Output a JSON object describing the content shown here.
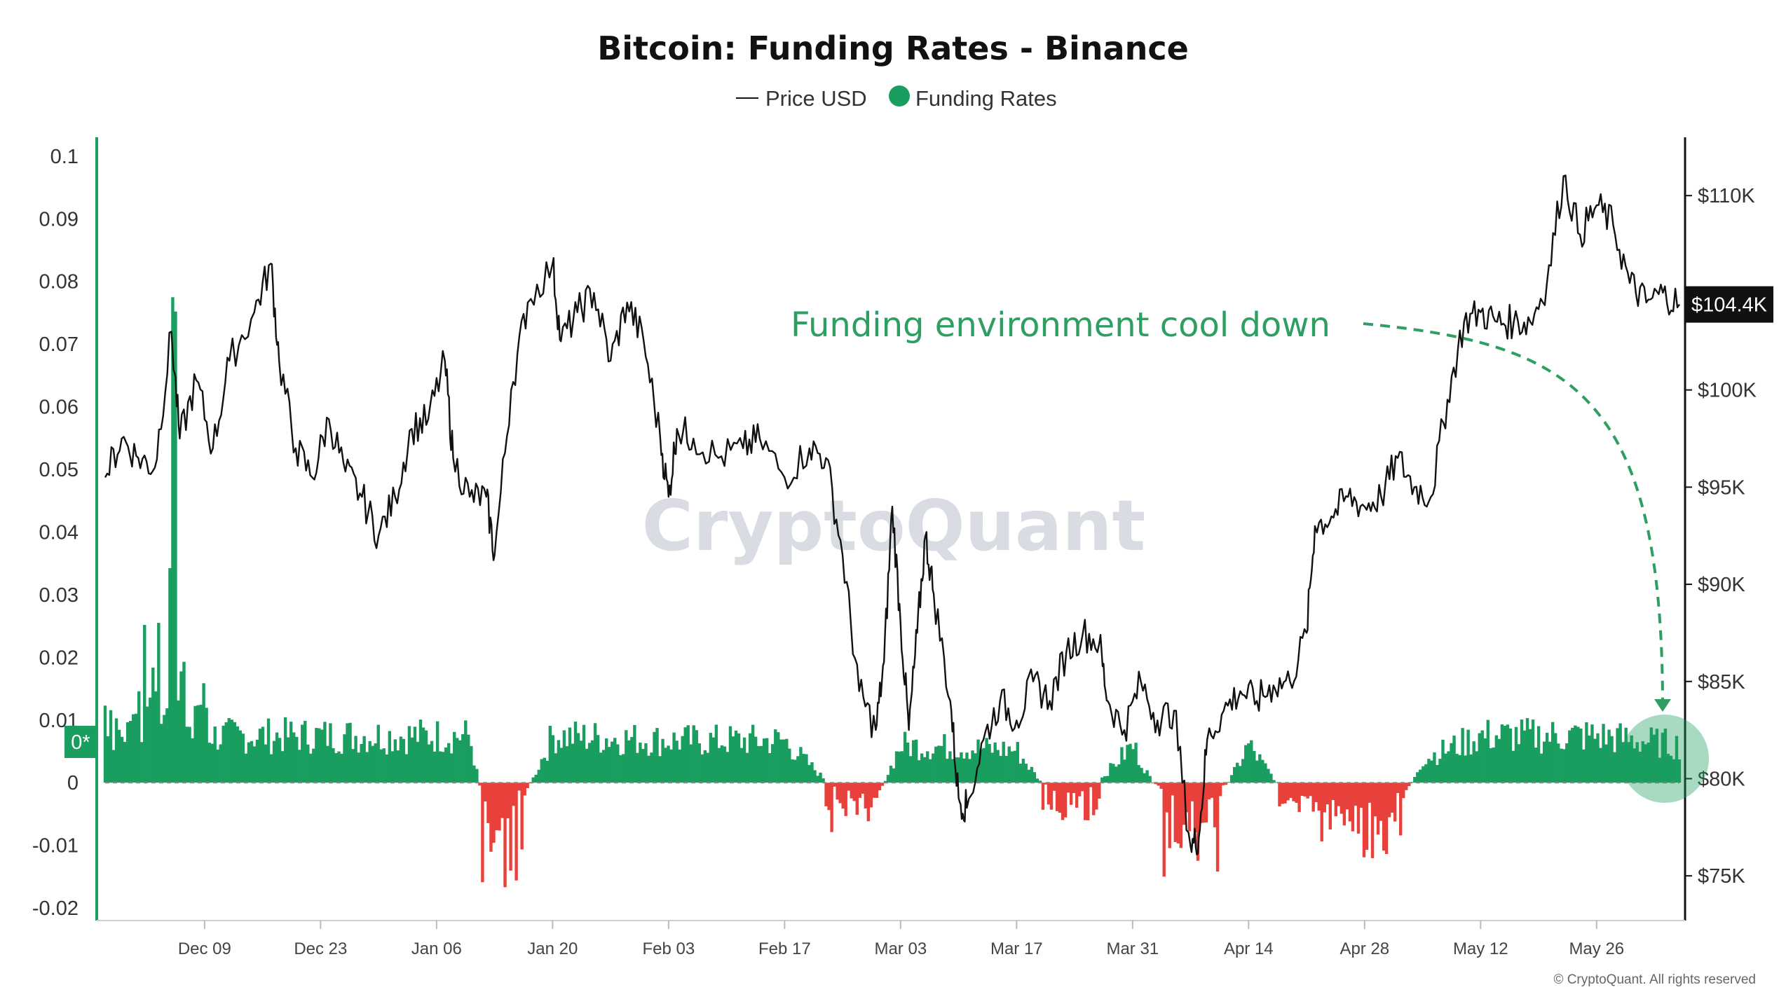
{
  "chart_data": {
    "type": "bar",
    "title": "Bitcoin: Funding Rates - Binance",
    "legend": [
      "Price USD",
      "Funding Rates"
    ],
    "legend_placement": "top-center",
    "grid": false,
    "colors": {
      "price_line": "#111111",
      "funding_positive": "#1a9e5f",
      "funding_negative": "#e8403a",
      "annotation": "#2e9e62",
      "axis_left": "#1a9e5f"
    },
    "left_axis": {
      "ylim": [
        -0.022,
        0.103
      ],
      "ticks": [
        "0.1",
        "0.09",
        "0.08",
        "0.07",
        "0.06",
        "0.05",
        "0.04",
        "0.03",
        "0.02",
        "0.01",
        "0",
        "-0.01",
        "-0.02"
      ],
      "tick_values": [
        0.1,
        0.09,
        0.08,
        0.07,
        0.06,
        0.05,
        0.04,
        0.03,
        0.02,
        0.01,
        0,
        -0.01,
        -0.02
      ]
    },
    "right_axis": {
      "ylim": [
        72700,
        113000
      ],
      "ticks": [
        "$110K",
        "$100K",
        "$95K",
        "$90K",
        "$85K",
        "$80K",
        "$75K"
      ],
      "tick_values": [
        110000,
        100000,
        95000,
        90000,
        85000,
        80000,
        75000
      ],
      "current_price_label": "$104.4K",
      "current_price": 104400
    },
    "x_axis": {
      "start": "2024-11-27",
      "end": "2025-06-05",
      "ticks": [
        {
          "label": "Dec 09",
          "date": "2024-12-09"
        },
        {
          "label": "Dec 23",
          "date": "2024-12-23"
        },
        {
          "label": "Jan 06",
          "date": "2025-01-06"
        },
        {
          "label": "Jan 20",
          "date": "2025-01-20"
        },
        {
          "label": "Feb 03",
          "date": "2025-02-03"
        },
        {
          "label": "Feb 17",
          "date": "2025-02-17"
        },
        {
          "label": "Mar 03",
          "date": "2025-03-03"
        },
        {
          "label": "Mar 17",
          "date": "2025-03-17"
        },
        {
          "label": "Mar 31",
          "date": "2025-03-31"
        },
        {
          "label": "Apr 14",
          "date": "2025-04-14"
        },
        {
          "label": "Apr 28",
          "date": "2025-04-28"
        },
        {
          "label": "May 12",
          "date": "2025-05-12"
        },
        {
          "label": "May 26",
          "date": "2025-05-26"
        }
      ]
    },
    "zero_marker_label": "0*",
    "series": [
      {
        "name": "Price USD",
        "type": "line",
        "axis": "right",
        "points": [
          [
            "2024-11-27",
            95500
          ],
          [
            "2024-11-29",
            97500
          ],
          [
            "2024-12-01",
            96500
          ],
          [
            "2024-12-03",
            96000
          ],
          [
            "2024-12-05",
            103000
          ],
          [
            "2024-12-06",
            97500
          ],
          [
            "2024-12-08",
            100500
          ],
          [
            "2024-12-10",
            97000
          ],
          [
            "2024-12-12",
            101500
          ],
          [
            "2024-12-15",
            104000
          ],
          [
            "2024-12-17",
            106500
          ],
          [
            "2024-12-18",
            101500
          ],
          [
            "2024-12-20",
            97000
          ],
          [
            "2024-12-22",
            95500
          ],
          [
            "2024-12-24",
            98500
          ],
          [
            "2024-12-26",
            95800
          ],
          [
            "2024-12-28",
            94500
          ],
          [
            "2024-12-30",
            92500
          ],
          [
            "2025-01-01",
            94500
          ],
          [
            "2025-01-03",
            98000
          ],
          [
            "2025-01-05",
            98500
          ],
          [
            "2025-01-07",
            101500
          ],
          [
            "2025-01-08",
            96500
          ],
          [
            "2025-01-10",
            94500
          ],
          [
            "2025-01-12",
            94500
          ],
          [
            "2025-01-13",
            91500
          ],
          [
            "2025-01-15",
            100000
          ],
          [
            "2025-01-17",
            104500
          ],
          [
            "2025-01-20",
            106500
          ],
          [
            "2025-01-21",
            102500
          ],
          [
            "2025-01-23",
            104000
          ],
          [
            "2025-01-25",
            105000
          ],
          [
            "2025-01-27",
            101500
          ],
          [
            "2025-01-29",
            104500
          ],
          [
            "2025-01-31",
            102500
          ],
          [
            "2025-02-02",
            97500
          ],
          [
            "2025-02-03",
            94500
          ],
          [
            "2025-02-04",
            98000
          ],
          [
            "2025-02-06",
            97500
          ],
          [
            "2025-02-09",
            96500
          ],
          [
            "2025-02-12",
            97000
          ],
          [
            "2025-02-14",
            97500
          ],
          [
            "2025-02-17",
            95500
          ],
          [
            "2025-02-20",
            97000
          ],
          [
            "2025-02-22",
            96500
          ],
          [
            "2025-02-24",
            91500
          ],
          [
            "2025-02-26",
            84500
          ],
          [
            "2025-02-28",
            82500
          ],
          [
            "2025-03-01",
            86000
          ],
          [
            "2025-03-02",
            94000
          ],
          [
            "2025-03-03",
            88000
          ],
          [
            "2025-03-04",
            82500
          ],
          [
            "2025-03-05",
            87500
          ],
          [
            "2025-03-06",
            92500
          ],
          [
            "2025-03-07",
            89500
          ],
          [
            "2025-03-09",
            84000
          ],
          [
            "2025-03-10",
            79000
          ],
          [
            "2025-03-11",
            78500
          ],
          [
            "2025-03-13",
            82000
          ],
          [
            "2025-03-15",
            84000
          ],
          [
            "2025-03-17",
            83000
          ],
          [
            "2025-03-19",
            85000
          ],
          [
            "2025-03-21",
            84000
          ],
          [
            "2025-03-23",
            86500
          ],
          [
            "2025-03-25",
            87500
          ],
          [
            "2025-03-27",
            87000
          ],
          [
            "2025-03-28",
            84000
          ],
          [
            "2025-03-30",
            82500
          ],
          [
            "2025-04-01",
            85000
          ],
          [
            "2025-04-03",
            83000
          ],
          [
            "2025-04-05",
            83500
          ],
          [
            "2025-04-07",
            76500
          ],
          [
            "2025-04-08",
            77000
          ],
          [
            "2025-04-09",
            82000
          ],
          [
            "2025-04-11",
            83500
          ],
          [
            "2025-04-13",
            84500
          ],
          [
            "2025-04-15",
            84000
          ],
          [
            "2025-04-17",
            84800
          ],
          [
            "2025-04-19",
            85000
          ],
          [
            "2025-04-21",
            87500
          ],
          [
            "2025-04-22",
            93000
          ],
          [
            "2025-04-24",
            93500
          ],
          [
            "2025-04-26",
            94500
          ],
          [
            "2025-04-28",
            94000
          ],
          [
            "2025-04-30",
            94500
          ],
          [
            "2025-05-02",
            96500
          ],
          [
            "2025-05-04",
            95000
          ],
          [
            "2025-05-06",
            94500
          ],
          [
            "2025-05-08",
            99500
          ],
          [
            "2025-05-10",
            103500
          ],
          [
            "2025-05-12",
            104000
          ],
          [
            "2025-05-14",
            103500
          ],
          [
            "2025-05-16",
            103500
          ],
          [
            "2025-05-18",
            103500
          ],
          [
            "2025-05-20",
            105500
          ],
          [
            "2025-05-22",
            111000
          ],
          [
            "2025-05-24",
            108000
          ],
          [
            "2025-05-26",
            109500
          ],
          [
            "2025-05-28",
            108500
          ],
          [
            "2025-05-30",
            105500
          ],
          [
            "2025-06-01",
            104500
          ],
          [
            "2025-06-03",
            105000
          ],
          [
            "2025-06-05",
            104400
          ]
        ]
      },
      {
        "name": "Funding Rates",
        "type": "bar",
        "axis": "left",
        "points": [
          [
            "2024-11-27",
            0.018
          ],
          [
            "2024-11-29",
            0.012
          ],
          [
            "2024-12-01",
            0.023
          ],
          [
            "2024-12-02",
            0.025
          ],
          [
            "2024-12-03",
            0.03
          ],
          [
            "2024-12-04",
            0.018
          ],
          [
            "2024-12-05",
            0.088
          ],
          [
            "2024-12-06",
            0.033
          ],
          [
            "2024-12-07",
            0.025
          ],
          [
            "2024-12-08",
            0.015
          ],
          [
            "2024-12-09",
            0.02
          ],
          [
            "2024-12-10",
            0.01
          ],
          [
            "2024-12-20",
            0.01
          ],
          [
            "2025-01-01",
            0.01
          ],
          [
            "2025-01-10",
            0.01
          ],
          [
            "2025-01-13",
            -0.017
          ],
          [
            "2025-01-20",
            0.01
          ],
          [
            "2025-02-03",
            0.009
          ],
          [
            "2025-02-17",
            0.009
          ],
          [
            "2025-02-27",
            -0.008
          ],
          [
            "2025-03-03",
            0.008
          ],
          [
            "2025-03-17",
            0.007
          ],
          [
            "2025-03-23",
            -0.007
          ],
          [
            "2025-03-31",
            0.008
          ],
          [
            "2025-04-07",
            -0.015
          ],
          [
            "2025-04-14",
            0.008
          ],
          [
            "2025-04-20",
            -0.006
          ],
          [
            "2025-04-25",
            -0.01
          ],
          [
            "2025-04-30",
            -0.014
          ],
          [
            "2025-05-05",
            0.005
          ],
          [
            "2025-05-12",
            0.01
          ],
          [
            "2025-05-26",
            0.01
          ],
          [
            "2025-06-05",
            0.008
          ]
        ]
      }
    ],
    "annotations": [
      {
        "text": "Funding environment cool down",
        "color": "#2e9e62"
      }
    ],
    "watermark": "CryptoQuant",
    "footer": "© CryptoQuant. All rights reserved"
  }
}
